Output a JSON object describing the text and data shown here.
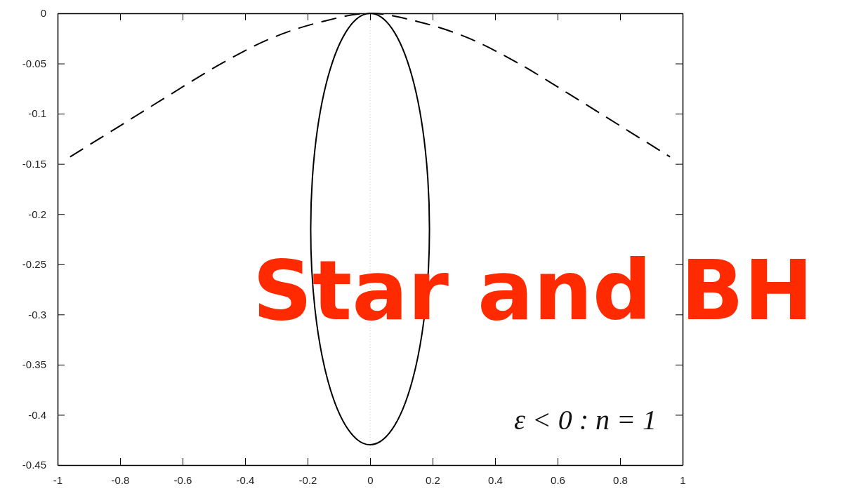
{
  "chart_data": {
    "type": "line",
    "xlim": [
      -1,
      1
    ],
    "xticks": [
      -1,
      -0.8,
      -0.6,
      -0.4,
      -0.2,
      0,
      0.2,
      0.4,
      0.6,
      0.8,
      1
    ],
    "ylim": [
      -0.45,
      0
    ],
    "yticks": [
      -0.45,
      -0.4,
      -0.35,
      -0.3,
      -0.25,
      -0.2,
      -0.15,
      -0.1,
      -0.05,
      0
    ],
    "grid": false,
    "marker": "none",
    "ref_lines": [
      {
        "axis": "x",
        "value": 0,
        "color": "#c8c8c8",
        "line_style": "dotted"
      }
    ],
    "series": [
      {
        "color": "#000000",
        "line_style": "dashed",
        "x": [
          -0.96,
          -0.8,
          -0.64,
          -0.47,
          -0.31,
          -0.15,
          0,
          0.15,
          0.31,
          0.47,
          0.64,
          0.8,
          0.96
        ],
        "values": [
          -0.143,
          -0.112,
          -0.081,
          -0.049,
          -0.024,
          -0.008,
          0,
          -0.008,
          -0.024,
          -0.049,
          -0.081,
          -0.112,
          -0.143
        ]
      }
    ],
    "annotations": [
      "ε < 0 : n = 1",
      "Star and BH"
    ]
  }
}
